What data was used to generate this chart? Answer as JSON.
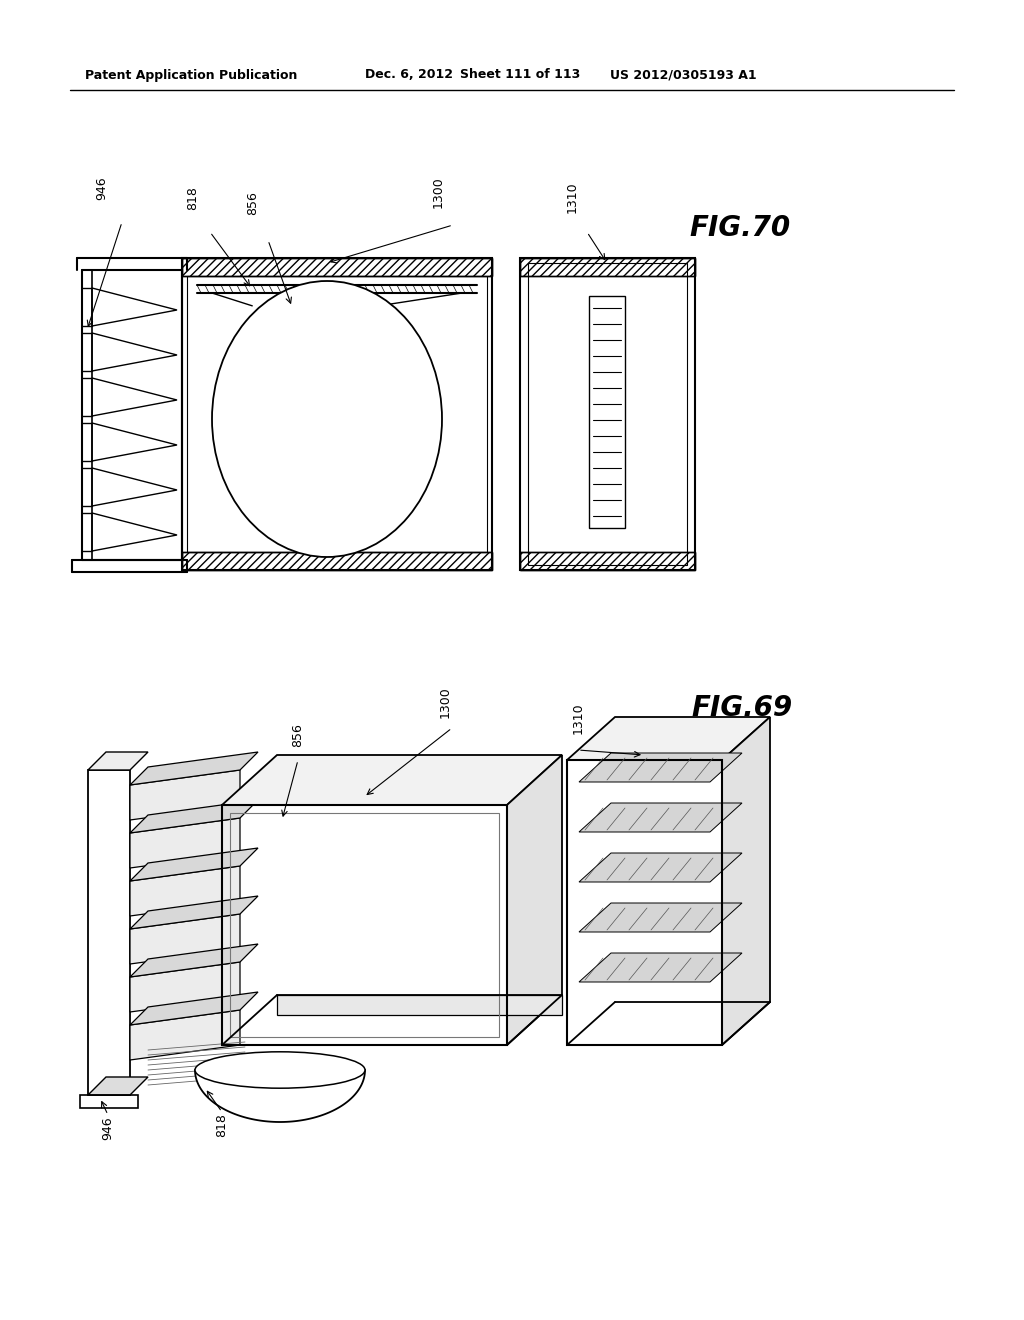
{
  "background_color": "#ffffff",
  "header_text": "Patent Application Publication",
  "header_date": "Dec. 6, 2012",
  "header_sheet": "Sheet 111 of 113",
  "header_patent": "US 2012/0305193 A1",
  "fig70_label": "FIG.70",
  "fig69_label": "FIG.69",
  "labels": {
    "946_top": "946",
    "818_top": "818",
    "856_top": "856",
    "1300_top": "1300",
    "1310_top": "1310",
    "856_bot": "856",
    "1300_bot": "1300",
    "1310_bot": "1310",
    "946_bot": "946",
    "818_bot": "818"
  }
}
